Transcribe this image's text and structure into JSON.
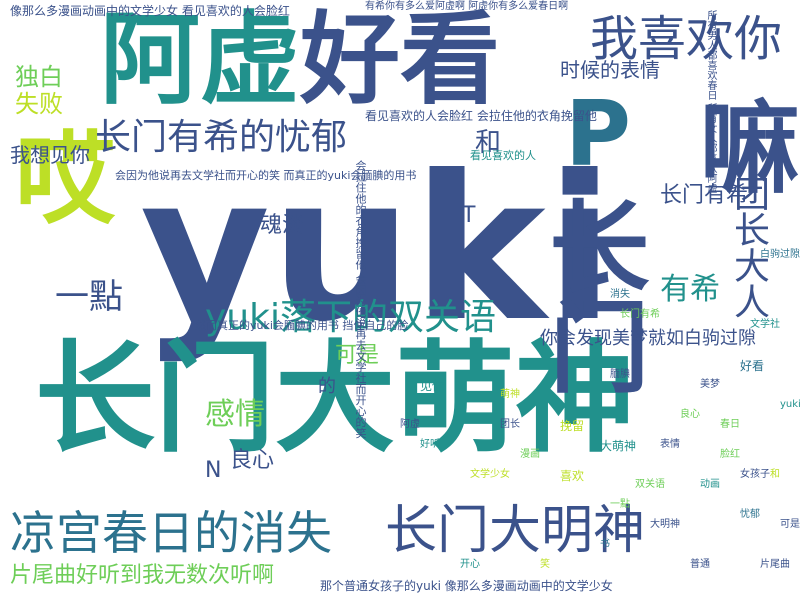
{
  "cloud": {
    "words": [
      {
        "text": "yuki",
        "color": "#3b528b"
      },
      {
        "text": "长门大萌神",
        "color": "#21918c"
      },
      {
        "text": "阿虚",
        "color": "#21918c"
      },
      {
        "text": "好看",
        "color": "#3b528b"
      },
      {
        "text": "嘛",
        "color": "#3b528b"
      },
      {
        "text": "哎",
        "color": "#bddf26"
      },
      {
        "text": "长门",
        "color": "#3b528b"
      },
      {
        "text": "P",
        "color": "#2c728e"
      },
      {
        "text": "我喜欢你",
        "color": "#3b528b"
      },
      {
        "text": "长门有希的忧郁",
        "color": "#3b528b"
      },
      {
        "text": "yuki落下的双关语",
        "color": "#21918c"
      },
      {
        "text": "凉宫春日的消失",
        "color": "#2c728e"
      },
      {
        "text": "长门大明神",
        "color": "#3b528b"
      },
      {
        "text": "片尾曲好听到我无数次听啊",
        "color": "#6ece58"
      },
      {
        "text": "一點",
        "color": "#3b528b"
      },
      {
        "text": "独白",
        "color": "#6ece58"
      },
      {
        "text": "失败",
        "color": "#bddf26"
      },
      {
        "text": "和",
        "color": "#3b528b"
      },
      {
        "text": "魂淡",
        "color": "#3b528b"
      },
      {
        "text": "有希",
        "color": "#21918c"
      },
      {
        "text": "团长大人",
        "color": "#3b528b"
      },
      {
        "text": "长门有希",
        "color": "#3b528b"
      },
      {
        "text": "时候的表情",
        "color": "#3b528b"
      },
      {
        "text": "感情",
        "color": "#6ece58"
      },
      {
        "text": "良心",
        "color": "#3b528b"
      },
      {
        "text": "N",
        "color": "#3b528b"
      },
      {
        "text": "T",
        "color": "#3b528b"
      },
      {
        "text": "可是",
        "color": "#6ece58"
      },
      {
        "text": "的",
        "color": "#3b528b"
      },
      {
        "text": "我想见你",
        "color": "#3b528b"
      },
      {
        "text": "你会发现美梦就如白驹过隙",
        "color": "#3b528b"
      },
      {
        "text": "看见喜欢的人会脸红 会拉住他的衣角挽留他",
        "color": "#3b528b"
      },
      {
        "text": "像那么多漫画动画中的文学少女 看见喜欢的人会脸红",
        "color": "#3b528b"
      },
      {
        "text": "那个普通女孩子的yuki 像那么多漫画动画中的文学少女",
        "color": "#3b528b"
      },
      {
        "text": "会拉住他的衣角挽留他 会因为他说再去文学社而开心的笑",
        "color": "#3b528b"
      },
      {
        "text": "有希你有多么爱阿虚啊 阿虚你有多么爱春日啊",
        "color": "#3b528b"
      },
      {
        "text": "所有男人都喜欢春日 所有女人都喜欢阿虚",
        "color": "#3b528b"
      },
      {
        "text": "然而真正的yuki会腼腆的用书 挡住自己的脸",
        "color": "#3b528b"
      },
      {
        "text": "会因为他说再去文学社而开心的笑 而真正的yuki会腼腆的用书",
        "color": "#3b528b"
      },
      {
        "text": "春日",
        "color": "#6ece58"
      },
      {
        "text": "大萌神",
        "color": "#21918c"
      },
      {
        "text": "文学少女",
        "color": "#bddf26"
      },
      {
        "text": "消失",
        "color": "#2c728e"
      },
      {
        "text": "阿虚",
        "color": "#3b528b"
      },
      {
        "text": "看见喜欢的人",
        "color": "#21918c"
      },
      {
        "text": "双关语",
        "color": "#6ece58"
      },
      {
        "text": "美梦",
        "color": "#3b528b"
      },
      {
        "text": "白驹过隙",
        "color": "#2c728e"
      },
      {
        "text": "喜欢",
        "color": "#bddf26"
      },
      {
        "text": "好听",
        "color": "#21918c"
      },
      {
        "text": "表情",
        "color": "#3b528b"
      },
      {
        "text": "长门有希",
        "color": "#6ece58"
      },
      {
        "text": "团长",
        "color": "#3b528b"
      },
      {
        "text": "文学社",
        "color": "#21918c"
      },
      {
        "text": "挽留",
        "color": "#bddf26"
      },
      {
        "text": "腼腆",
        "color": "#3b528b"
      },
      {
        "text": "脸红",
        "color": "#6ece58"
      },
      {
        "text": "忧郁",
        "color": "#2c728e"
      },
      {
        "text": "片尾曲",
        "color": "#3b528b"
      },
      {
        "text": "见你",
        "color": "#21918c"
      },
      {
        "text": "萌神",
        "color": "#bddf26"
      },
      {
        "text": "大明神",
        "color": "#3b528b"
      },
      {
        "text": "漫画",
        "color": "#6ece58"
      },
      {
        "text": "动画",
        "color": "#21918c"
      },
      {
        "text": "女孩子",
        "color": "#3b528b"
      },
      {
        "text": "书",
        "color": "#2c728e"
      },
      {
        "text": "笑",
        "color": "#bddf26"
      },
      {
        "text": "开心",
        "color": "#21918c"
      },
      {
        "text": "普通",
        "color": "#3b528b"
      },
      {
        "text": "一點",
        "color": "#6ece58"
      },
      {
        "text": "好看",
        "color": "#2c728e"
      },
      {
        "text": "yuki",
        "color": "#21918c"
      },
      {
        "text": "和",
        "color": "#bddf26"
      },
      {
        "text": "可是",
        "color": "#3b528b"
      },
      {
        "text": "良心",
        "color": "#6ece58"
      }
    ]
  }
}
